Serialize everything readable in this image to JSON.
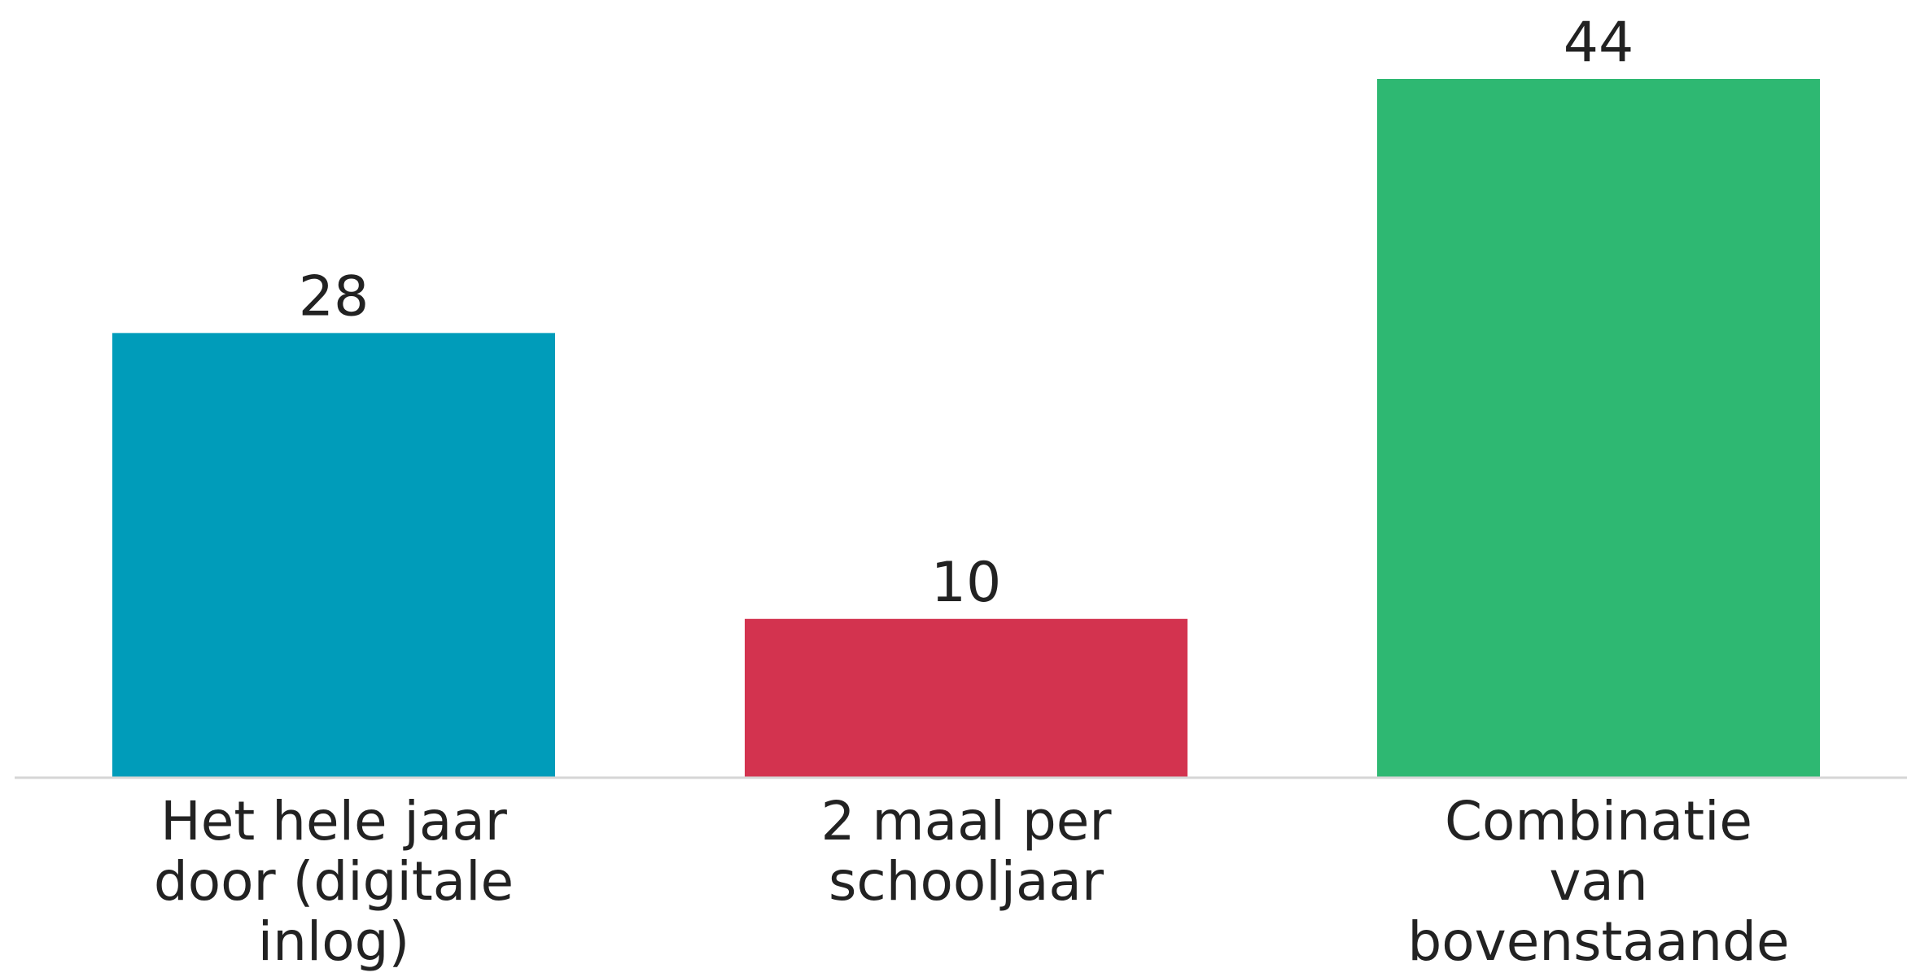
{
  "chart_data": {
    "type": "bar",
    "title": "",
    "xlabel": "",
    "ylabel": "",
    "categories": [
      [
        "Het hele jaar",
        "door (digitale",
        "inlog)"
      ],
      [
        "2 maal per",
        "schooljaar"
      ],
      [
        "Combinatie",
        "van",
        "bovenstaande"
      ]
    ],
    "values": [
      28,
      10,
      44
    ],
    "value_labels": [
      "28",
      "10",
      "44"
    ],
    "colors": [
      "#009cba",
      "#d3334f",
      "#2eb872"
    ],
    "ylim": [
      0,
      44
    ],
    "grid": false,
    "legend": "none"
  }
}
